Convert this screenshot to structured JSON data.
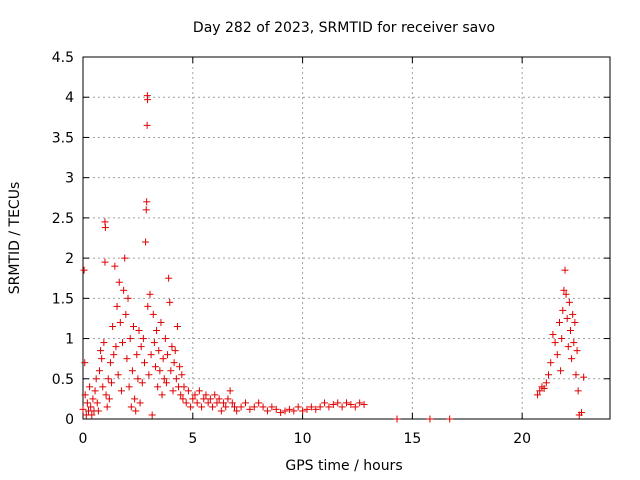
{
  "chart_data": {
    "type": "scatter",
    "title": "Day 282 of 2023, SRMTID for receiver savo",
    "xlabel": "GPS time / hours",
    "ylabel": "SRMTID / TECUs",
    "xlim": [
      0,
      24
    ],
    "ylim": [
      0,
      4.5
    ],
    "xticks": [
      0,
      5,
      10,
      15,
      20
    ],
    "xtick_labels": [
      "0",
      "5",
      "10",
      "15",
      "20"
    ],
    "yticks": [
      0,
      0.5,
      1,
      1.5,
      2,
      2.5,
      3,
      3.5,
      4,
      4.5
    ],
    "ytick_labels": [
      "0",
      "0.5",
      "1",
      "1.5",
      "2",
      "2.5",
      "3",
      "3.5",
      "4",
      "4.5"
    ],
    "grid": true,
    "marker": "plus",
    "marker_color": "#e00000",
    "series": [
      {
        "name": "SRMTID",
        "points": [
          [
            0.0,
            0.12
          ],
          [
            0.05,
            1.85
          ],
          [
            0.08,
            0.7
          ],
          [
            0.1,
            0.3
          ],
          [
            0.15,
            0.05
          ],
          [
            0.2,
            0.2
          ],
          [
            0.25,
            0.1
          ],
          [
            0.3,
            0.4
          ],
          [
            0.35,
            0.15
          ],
          [
            0.4,
            0.05
          ],
          [
            0.45,
            0.25
          ],
          [
            0.5,
            0.1
          ],
          [
            0.55,
            0.35
          ],
          [
            0.6,
            0.5
          ],
          [
            0.65,
            0.2
          ],
          [
            0.7,
            0.1
          ],
          [
            0.75,
            0.6
          ],
          [
            0.8,
            0.85
          ],
          [
            0.85,
            0.75
          ],
          [
            0.9,
            0.4
          ],
          [
            0.95,
            0.95
          ],
          [
            1.0,
            1.95
          ],
          [
            1.0,
            2.45
          ],
          [
            1.02,
            2.38
          ],
          [
            1.05,
            0.3
          ],
          [
            1.1,
            0.15
          ],
          [
            1.15,
            0.5
          ],
          [
            1.2,
            0.25
          ],
          [
            1.25,
            0.7
          ],
          [
            1.3,
            0.45
          ],
          [
            1.35,
            1.15
          ],
          [
            1.4,
            0.8
          ],
          [
            1.45,
            1.9
          ],
          [
            1.5,
            0.9
          ],
          [
            1.55,
            1.4
          ],
          [
            1.6,
            0.55
          ],
          [
            1.65,
            1.7
          ],
          [
            1.7,
            1.2
          ],
          [
            1.75,
            0.35
          ],
          [
            1.8,
            0.95
          ],
          [
            1.85,
            1.6
          ],
          [
            1.9,
            2.0
          ],
          [
            1.95,
            1.3
          ],
          [
            2.0,
            0.75
          ],
          [
            2.05,
            1.5
          ],
          [
            2.1,
            0.4
          ],
          [
            2.15,
            1.0
          ],
          [
            2.2,
            0.15
          ],
          [
            2.25,
            0.6
          ],
          [
            2.3,
            1.15
          ],
          [
            2.35,
            0.25
          ],
          [
            2.4,
            0.1
          ],
          [
            2.45,
            0.8
          ],
          [
            2.5,
            0.5
          ],
          [
            2.55,
            1.1
          ],
          [
            2.6,
            0.2
          ],
          [
            2.65,
            0.9
          ],
          [
            2.7,
            0.45
          ],
          [
            2.75,
            1.0
          ],
          [
            2.8,
            0.7
          ],
          [
            2.85,
            2.2
          ],
          [
            2.88,
            2.6
          ],
          [
            2.9,
            2.7
          ],
          [
            2.92,
            3.65
          ],
          [
            2.93,
            4.02
          ],
          [
            2.94,
            3.97
          ],
          [
            2.95,
            1.4
          ],
          [
            3.0,
            0.55
          ],
          [
            3.05,
            1.55
          ],
          [
            3.1,
            0.8
          ],
          [
            3.15,
            0.05
          ],
          [
            3.2,
            1.3
          ],
          [
            3.25,
            0.95
          ],
          [
            3.3,
            0.65
          ],
          [
            3.35,
            1.1
          ],
          [
            3.4,
            0.4
          ],
          [
            3.45,
            0.85
          ],
          [
            3.5,
            0.6
          ],
          [
            3.55,
            1.2
          ],
          [
            3.6,
            0.3
          ],
          [
            3.65,
            0.75
          ],
          [
            3.7,
            0.5
          ],
          [
            3.75,
            1.0
          ],
          [
            3.8,
            0.45
          ],
          [
            3.85,
            0.8
          ],
          [
            3.9,
            1.75
          ],
          [
            3.95,
            1.45
          ],
          [
            4.0,
            0.6
          ],
          [
            4.05,
            0.9
          ],
          [
            4.1,
            0.35
          ],
          [
            4.15,
            0.7
          ],
          [
            4.2,
            0.85
          ],
          [
            4.25,
            0.5
          ],
          [
            4.3,
            1.15
          ],
          [
            4.35,
            0.4
          ],
          [
            4.4,
            0.65
          ],
          [
            4.45,
            0.3
          ],
          [
            4.5,
            0.55
          ],
          [
            4.55,
            0.25
          ],
          [
            4.6,
            0.4
          ],
          [
            4.7,
            0.2
          ],
          [
            4.8,
            0.35
          ],
          [
            4.9,
            0.15
          ],
          [
            5.0,
            0.25
          ],
          [
            5.1,
            0.3
          ],
          [
            5.2,
            0.2
          ],
          [
            5.3,
            0.35
          ],
          [
            5.4,
            0.15
          ],
          [
            5.5,
            0.25
          ],
          [
            5.6,
            0.3
          ],
          [
            5.7,
            0.2
          ],
          [
            5.8,
            0.25
          ],
          [
            5.9,
            0.15
          ],
          [
            6.0,
            0.3
          ],
          [
            6.1,
            0.2
          ],
          [
            6.2,
            0.25
          ],
          [
            6.3,
            0.1
          ],
          [
            6.4,
            0.2
          ],
          [
            6.5,
            0.15
          ],
          [
            6.6,
            0.25
          ],
          [
            6.7,
            0.35
          ],
          [
            6.8,
            0.2
          ],
          [
            6.9,
            0.15
          ],
          [
            7.0,
            0.1
          ],
          [
            7.2,
            0.15
          ],
          [
            7.4,
            0.2
          ],
          [
            7.6,
            0.12
          ],
          [
            7.8,
            0.15
          ],
          [
            8.0,
            0.2
          ],
          [
            8.2,
            0.15
          ],
          [
            8.4,
            0.1
          ],
          [
            8.6,
            0.15
          ],
          [
            8.8,
            0.12
          ],
          [
            9.0,
            0.08
          ],
          [
            9.2,
            0.1
          ],
          [
            9.4,
            0.12
          ],
          [
            9.6,
            0.1
          ],
          [
            9.8,
            0.15
          ],
          [
            10.0,
            0.1
          ],
          [
            10.2,
            0.12
          ],
          [
            10.4,
            0.15
          ],
          [
            10.6,
            0.12
          ],
          [
            10.8,
            0.15
          ],
          [
            11.0,
            0.2
          ],
          [
            11.2,
            0.15
          ],
          [
            11.4,
            0.18
          ],
          [
            11.6,
            0.2
          ],
          [
            11.8,
            0.15
          ],
          [
            12.0,
            0.2
          ],
          [
            12.2,
            0.18
          ],
          [
            12.4,
            0.15
          ],
          [
            12.6,
            0.2
          ],
          [
            12.8,
            0.18
          ],
          [
            14.3,
            0.0
          ],
          [
            15.8,
            0.0
          ],
          [
            16.7,
            0.0
          ],
          [
            20.7,
            0.3
          ],
          [
            20.8,
            0.35
          ],
          [
            20.9,
            0.4
          ],
          [
            21.0,
            0.38
          ],
          [
            21.1,
            0.45
          ],
          [
            21.2,
            0.55
          ],
          [
            21.3,
            0.7
          ],
          [
            21.4,
            1.05
          ],
          [
            21.5,
            0.95
          ],
          [
            21.6,
            0.8
          ],
          [
            21.7,
            1.2
          ],
          [
            21.75,
            0.6
          ],
          [
            21.8,
            1.0
          ],
          [
            21.85,
            1.35
          ],
          [
            21.9,
            1.6
          ],
          [
            21.95,
            1.85
          ],
          [
            22.0,
            1.55
          ],
          [
            22.05,
            1.25
          ],
          [
            22.1,
            0.9
          ],
          [
            22.15,
            1.45
          ],
          [
            22.2,
            1.1
          ],
          [
            22.25,
            0.75
          ],
          [
            22.3,
            1.3
          ],
          [
            22.35,
            0.95
          ],
          [
            22.4,
            1.2
          ],
          [
            22.45,
            0.55
          ],
          [
            22.5,
            0.85
          ],
          [
            22.55,
            0.35
          ],
          [
            22.6,
            0.05
          ],
          [
            22.7,
            0.08
          ],
          [
            22.8,
            0.52
          ]
        ]
      }
    ]
  }
}
